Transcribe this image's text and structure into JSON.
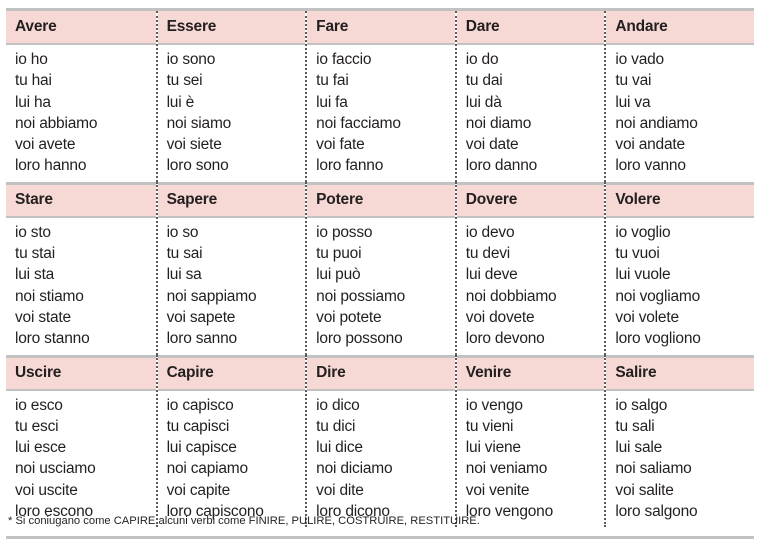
{
  "rows": [
    {
      "verbs": [
        {
          "name": "Avere",
          "forms": [
            "io ho",
            "tu hai",
            "lui ha",
            "noi abbiamo",
            "voi avete",
            "loro hanno"
          ]
        },
        {
          "name": "Essere",
          "forms": [
            "io sono",
            "tu sei",
            "lui è",
            "noi siamo",
            "voi siete",
            "loro sono"
          ]
        },
        {
          "name": "Fare",
          "forms": [
            "io faccio",
            "tu fai",
            "lui fa",
            "noi facciamo",
            "voi fate",
            "loro fanno"
          ]
        },
        {
          "name": "Dare",
          "forms": [
            "io do",
            "tu dai",
            "lui dà",
            "noi diamo",
            "voi date",
            "loro danno"
          ]
        },
        {
          "name": "Andare",
          "forms": [
            "io vado",
            "tu vai",
            "lui va",
            "noi andiamo",
            "voi andate",
            "loro vanno"
          ]
        }
      ]
    },
    {
      "verbs": [
        {
          "name": "Stare",
          "forms": [
            "io sto",
            "tu stai",
            "lui sta",
            "noi stiamo",
            "voi state",
            "loro stanno"
          ]
        },
        {
          "name": "Sapere",
          "forms": [
            "io so",
            "tu sai",
            "lui sa",
            "noi sappiamo",
            "voi sapete",
            "loro sanno"
          ]
        },
        {
          "name": "Potere",
          "forms": [
            "io posso",
            "tu puoi",
            "lui può",
            "noi possiamo",
            "voi potete",
            "loro possono"
          ]
        },
        {
          "name": "Dovere",
          "forms": [
            "io devo",
            "tu devi",
            "lui deve",
            "noi dobbiamo",
            "voi dovete",
            "loro devono"
          ]
        },
        {
          "name": "Volere",
          "forms": [
            "io voglio",
            "tu vuoi",
            "lui vuole",
            "noi vogliamo",
            "voi volete",
            "loro vogliono"
          ]
        }
      ]
    },
    {
      "verbs": [
        {
          "name": "Uscire",
          "forms": [
            "io esco",
            "tu esci",
            "lui esce",
            "noi usciamo",
            "voi uscite",
            "loro escono"
          ]
        },
        {
          "name": "Capire",
          "forms": [
            "io capisco",
            "tu capisci",
            "lui capisce",
            "noi capiamo",
            "voi capite",
            "loro capiscono"
          ]
        },
        {
          "name": "Dire",
          "forms": [
            "io dico",
            "tu dici",
            "lui dice",
            "noi diciamo",
            "voi dite",
            "loro dicono"
          ]
        },
        {
          "name": "Venire",
          "forms": [
            "io vengo",
            "tu vieni",
            "lui viene",
            "noi veniamo",
            "voi venite",
            "loro vengono"
          ]
        },
        {
          "name": "Salire",
          "forms": [
            "io salgo",
            "tu sali",
            "lui sale",
            "noi saliamo",
            "voi salite",
            "loro salgono"
          ]
        }
      ]
    }
  ],
  "footnote": "* Si coniugano come CAPIRE alcuni verbi come FINIRE, PULIRE, COSTRUIRE, RESTITUIRE."
}
